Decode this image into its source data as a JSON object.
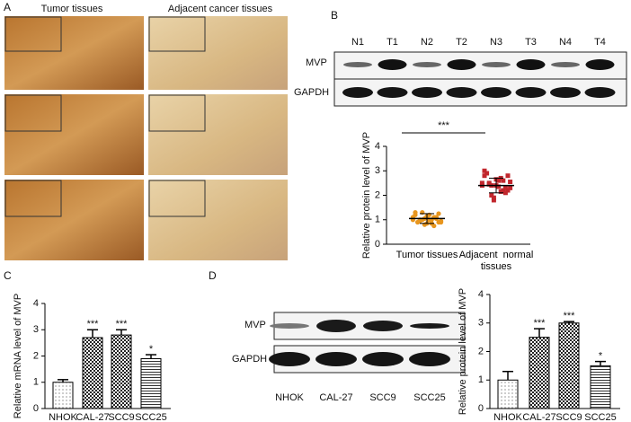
{
  "panels": {
    "a": "A",
    "b": "B",
    "c": "C",
    "d": "D"
  },
  "histology": {
    "left": "Tumor tissues",
    "right": "Adjacent cancer tissues"
  },
  "blot_b": {
    "lanes": [
      "N1",
      "T1",
      "N2",
      "T2",
      "N3",
      "T3",
      "N4",
      "T4"
    ],
    "rows": [
      "MVP",
      "GAPDH"
    ]
  },
  "blot_d": {
    "lanes": [
      "NHOK",
      "CAL-27",
      "SCC9",
      "SCC25"
    ],
    "rows": [
      "MVP",
      "GAPDH"
    ]
  },
  "chart_data": [
    {
      "type": "scatter",
      "ylabel": "Relative protein level of MVP",
      "categories": [
        "Tumor tissues",
        "Adjacent  normal tissues"
      ],
      "colors": [
        "#e8961e",
        "#c1272d"
      ],
      "significance": "***",
      "groups": [
        [
          1.0,
          0.9,
          1.1,
          1.2,
          0.8,
          1.0,
          1.3,
          0.95,
          1.05,
          0.85,
          1.15,
          1.0,
          0.9,
          1.1,
          1.25,
          0.75,
          1.0,
          1.05,
          0.95,
          1.2,
          0.9,
          1.1,
          1.0,
          0.85,
          1.3
        ],
        [
          2.4,
          2.8,
          2.2,
          2.6,
          1.8,
          2.5,
          3.0,
          2.3,
          2.1,
          2.7,
          2.4,
          2.0,
          2.9,
          2.5,
          2.2,
          2.6,
          2.35,
          1.9,
          2.45,
          2.8,
          2.55,
          2.3,
          2.15,
          2.65,
          2.4
        ]
      ],
      "means": [
        1.05,
        2.4
      ],
      "errors": [
        0.2,
        0.3
      ],
      "ylim": [
        0,
        4
      ],
      "yticks": [
        0,
        1,
        2,
        3,
        4
      ]
    },
    {
      "type": "bar",
      "ylabel": "Relative mRNA level of MVP",
      "categories": [
        "NHOK",
        "CAL-27",
        "SCC9",
        "SCC25"
      ],
      "values": [
        1.0,
        2.7,
        2.8,
        1.9
      ],
      "errors": [
        0.1,
        0.3,
        0.2,
        0.15
      ],
      "annotations": [
        null,
        "***",
        "***",
        "*"
      ],
      "patterns": [
        "dots",
        "checks",
        "checks",
        "hlines"
      ],
      "ylim": [
        0,
        4
      ],
      "yticks": [
        0,
        1,
        2,
        3,
        4
      ]
    },
    {
      "type": "bar",
      "ylabel": "Relative protein level of MVP",
      "categories": [
        "NHOK",
        "CAL-27",
        "SCC9",
        "SCC25"
      ],
      "values": [
        1.0,
        2.5,
        3.0,
        1.5
      ],
      "errors": [
        0.3,
        0.3,
        0.05,
        0.15
      ],
      "annotations": [
        null,
        "***",
        "***",
        "*"
      ],
      "patterns": [
        "dots",
        "checks",
        "checks",
        "hlines"
      ],
      "ylim": [
        0,
        4
      ],
      "yticks": [
        0,
        1,
        2,
        3,
        4
      ]
    }
  ]
}
